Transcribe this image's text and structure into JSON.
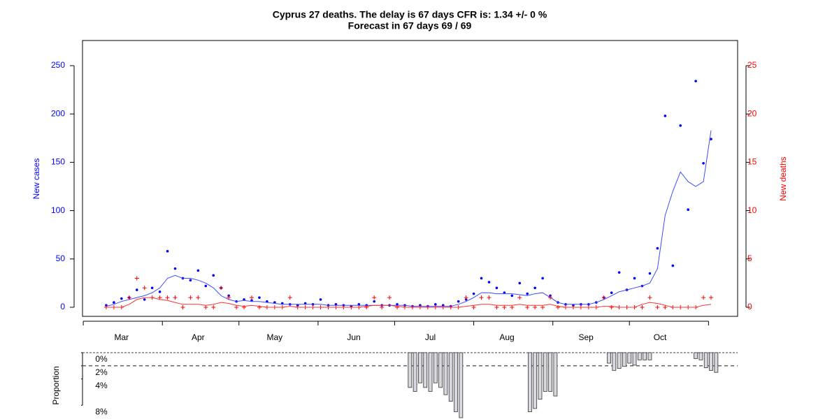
{
  "chart_data": [
    {
      "type": "combo",
      "title": "Cyprus 27 deaths. The delay is 67 days CFR is: 1.34 +/- 0 %",
      "subtitle": "Forecast in 67 days 69 / 69",
      "ylabel": "New cases",
      "y2label": "New deaths",
      "x": [
        9,
        12,
        15,
        18,
        21,
        24,
        27,
        30,
        33,
        36,
        39,
        42,
        45,
        48,
        51,
        54,
        57,
        60,
        63,
        66,
        69,
        72,
        75,
        78,
        81,
        84,
        87,
        90,
        93,
        96,
        99,
        102,
        105,
        108,
        111,
        114,
        117,
        120,
        123,
        126,
        129,
        132,
        135,
        138,
        141,
        144,
        147,
        150,
        153,
        156,
        159,
        162,
        165,
        168,
        171,
        174,
        177,
        180,
        183,
        186,
        189,
        192,
        195,
        198,
        201,
        204,
        207,
        210,
        213,
        216,
        219,
        222,
        225,
        228,
        231,
        234,
        237,
        240,
        243,
        246
      ],
      "xlim": [
        -0.3,
        256.4
      ],
      "xticks": [
        0,
        31,
        61,
        92,
        122,
        153,
        184,
        214,
        245
      ],
      "month_labels": [
        {
          "value": 15,
          "label": "Mar"
        },
        {
          "value": 45,
          "label": "Apr"
        },
        {
          "value": 75,
          "label": "May"
        },
        {
          "value": 106,
          "label": "Jun"
        },
        {
          "value": 136,
          "label": "Jul"
        },
        {
          "value": 166,
          "label": "Aug"
        },
        {
          "value": 197,
          "label": "Sep"
        },
        {
          "value": 226,
          "label": "Oct"
        }
      ],
      "ylim": [
        -9.4,
        276
      ],
      "yticks": [
        0,
        50,
        100,
        150,
        200,
        250
      ],
      "y2lim": [
        -0.94,
        27.6
      ],
      "y2ticks": [
        0,
        5,
        10,
        15,
        20,
        25
      ],
      "series": [
        {
          "marker": "dot",
          "color": "#0000ff",
          "values": [
            2,
            5,
            9,
            10,
            18,
            8,
            20,
            16,
            58,
            40,
            30,
            28,
            38,
            22,
            33,
            20,
            12,
            6,
            8,
            7,
            10,
            6,
            5,
            4,
            3,
            2,
            4,
            3,
            8,
            2,
            3,
            2,
            1,
            3,
            2,
            6,
            2,
            2,
            3,
            2,
            1,
            2,
            1,
            3,
            2,
            1,
            6,
            8,
            14,
            30,
            26,
            20,
            15,
            12,
            25,
            14,
            20,
            30,
            12,
            5,
            3,
            2,
            3,
            3,
            5,
            10,
            15,
            36,
            18,
            30,
            22,
            35,
            61,
            198,
            43,
            188,
            101,
            234,
            149,
            174
          ]
        },
        {
          "marker": "line",
          "color": "#3b4cff",
          "values": [
            1,
            3,
            6,
            8,
            10,
            12,
            15,
            20,
            30,
            33,
            30,
            30,
            28,
            25,
            20,
            12,
            8,
            6,
            7,
            6,
            6,
            5,
            4,
            3,
            3,
            3,
            3,
            3,
            3,
            2,
            2,
            2,
            2,
            2,
            2,
            2,
            2,
            2,
            2,
            2,
            1,
            1,
            1,
            1,
            1,
            1,
            3,
            6,
            10,
            15,
            15,
            14,
            14,
            14,
            13,
            12,
            14,
            15,
            10,
            5,
            3,
            3,
            3,
            3,
            5,
            8,
            12,
            16,
            18,
            20,
            22,
            25,
            40,
            95,
            120,
            140,
            130,
            125,
            130,
            183
          ]
        },
        {
          "marker": "plus",
          "axis": "y2",
          "color": "#ff0000",
          "values": [
            0,
            0,
            0,
            1,
            3,
            2,
            1,
            1,
            1,
            1,
            0,
            1,
            1,
            0,
            0,
            2,
            1,
            0,
            0,
            1,
            0,
            0,
            0,
            0,
            1,
            0,
            0,
            0,
            0,
            0,
            0,
            0,
            0,
            0,
            0,
            1,
            0,
            1,
            0,
            0,
            0,
            0,
            0,
            0,
            0,
            0,
            0,
            1,
            0,
            1,
            1,
            0,
            0,
            0,
            1,
            0,
            0,
            0,
            1,
            0,
            0,
            0,
            0,
            0,
            0,
            1,
            0,
            0,
            0,
            0,
            0,
            1,
            0,
            0,
            0,
            0,
            0,
            0,
            1,
            1
          ]
        },
        {
          "marker": "line",
          "axis": "y2",
          "color": "#ff3030",
          "values": [
            0,
            0,
            0,
            0.3,
            0.8,
            1,
            1,
            0.8,
            0.7,
            0.5,
            0.3,
            0.3,
            0.3,
            0.2,
            0.3,
            0.5,
            0.4,
            0.2,
            0.1,
            0.2,
            0.1,
            0,
            0,
            0,
            0.1,
            0,
            0,
            0,
            0,
            0,
            0,
            0,
            0,
            0,
            0.1,
            0.2,
            0.2,
            0.2,
            0.1,
            0,
            0,
            0,
            0,
            0,
            0,
            0,
            0,
            0.1,
            0.2,
            0.3,
            0.3,
            0.2,
            0.2,
            0.2,
            0.3,
            0.2,
            0.2,
            0.2,
            0.3,
            0.1,
            0,
            0,
            0,
            0,
            0,
            0.1,
            0.1,
            0,
            0,
            0,
            0.3,
            0.5,
            0.4,
            0.2,
            0,
            0,
            0,
            0,
            0.2,
            0.3
          ]
        }
      ]
    },
    {
      "type": "bar",
      "ylabel": "Proportion",
      "x": [
        128,
        130,
        132,
        134,
        136,
        138,
        140,
        142,
        144,
        146,
        148,
        175,
        177,
        179,
        181,
        183,
        185,
        206,
        208,
        210,
        212,
        214,
        216,
        218,
        220,
        222,
        240,
        242,
        244,
        246,
        248
      ],
      "values": [
        5.3,
        5.9,
        4.6,
        5.3,
        5.9,
        4.6,
        5.3,
        6.4,
        7.4,
        9.0,
        9.9,
        9.0,
        8.5,
        7.1,
        5.9,
        5.9,
        6.6,
        1.6,
        2.7,
        2.4,
        2.1,
        1.6,
        1.9,
        1.1,
        1.1,
        1.1,
        0.9,
        1.1,
        2.3,
        2.7,
        3.0
      ],
      "xlim": [
        -0.3,
        256.4
      ],
      "ylim": [
        0,
        10.1
      ],
      "yticks": [
        {
          "value": 0,
          "label": "0%"
        },
        {
          "value": 2,
          "label": "2%"
        },
        {
          "value": 4,
          "label": "4%"
        },
        {
          "value": 8,
          "label": "8%"
        }
      ],
      "reference_line": 2,
      "color": "#d8d8e0"
    }
  ]
}
